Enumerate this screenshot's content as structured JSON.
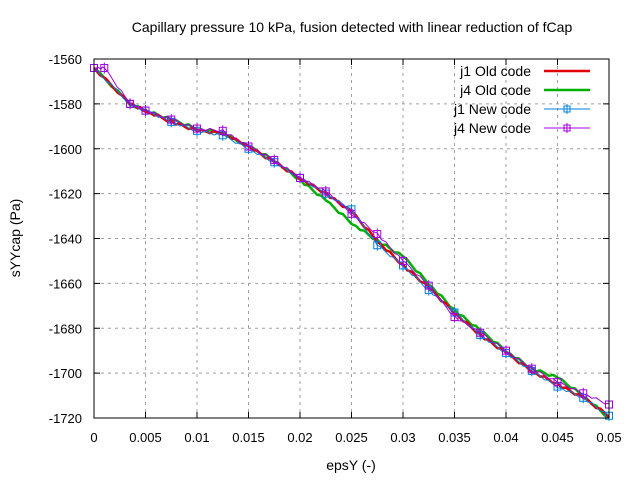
{
  "chart_data": {
    "type": "line",
    "title": "Capillary pressure 10 kPa, fusion detected with linear reduction of fCap",
    "xlabel": "epsY (-)",
    "ylabel": "sYYcap (Pa)",
    "xlim": [
      0,
      0.05
    ],
    "ylim": [
      -1720,
      -1560
    ],
    "x_ticks": [
      0,
      0.005,
      0.01,
      0.015,
      0.02,
      0.025,
      0.03,
      0.035,
      0.04,
      0.045,
      0.05
    ],
    "x_tick_labels": [
      "0",
      "0.005",
      "0.01",
      "0.015",
      "0.02",
      "0.025",
      "0.03",
      "0.035",
      "0.04",
      "0.045",
      "0.05"
    ],
    "y_ticks": [
      -1560,
      -1580,
      -1600,
      -1620,
      -1640,
      -1660,
      -1680,
      -1700,
      -1720
    ],
    "y_tick_labels": [
      "-1560",
      "-1580",
      "-1600",
      "-1620",
      "-1640",
      "-1660",
      "-1680",
      "-1700",
      "-1720"
    ],
    "grid": true,
    "legend_position": "top-right",
    "series": [
      {
        "name": "j1 Old code",
        "color": "#e00000",
        "style": "line",
        "x": [
          0,
          0.0035,
          0.005,
          0.0075,
          0.01,
          0.0125,
          0.015,
          0.0175,
          0.02,
          0.0225,
          0.025,
          0.0275,
          0.03,
          0.0325,
          0.035,
          0.0375,
          0.04,
          0.0425,
          0.045,
          0.0475,
          0.05
        ],
        "y": [
          -1564,
          -1580,
          -1583,
          -1588,
          -1592,
          -1593,
          -1599,
          -1606,
          -1613,
          -1620,
          -1628,
          -1641,
          -1652,
          -1662,
          -1673,
          -1683,
          -1691,
          -1699,
          -1705,
          -1711,
          -1719
        ]
      },
      {
        "name": "j4 Old code",
        "color": "#00b000",
        "style": "line",
        "x": [
          0,
          0.0035,
          0.005,
          0.0075,
          0.01,
          0.0125,
          0.015,
          0.0175,
          0.02,
          0.0225,
          0.025,
          0.0275,
          0.03,
          0.0325,
          0.035,
          0.0375,
          0.04,
          0.0425,
          0.045,
          0.0475,
          0.05
        ],
        "y": [
          -1564,
          -1580,
          -1583,
          -1587,
          -1591,
          -1593,
          -1599,
          -1605,
          -1614,
          -1623,
          -1633,
          -1641,
          -1648,
          -1660,
          -1672,
          -1681,
          -1690,
          -1698,
          -1702,
          -1710,
          -1720
        ]
      },
      {
        "name": "j1 New code",
        "color": "#0080e0",
        "style": "linespoints",
        "x": [
          0,
          0.0035,
          0.005,
          0.0075,
          0.01,
          0.0125,
          0.015,
          0.0175,
          0.02,
          0.0225,
          0.025,
          0.0275,
          0.03,
          0.0325,
          0.035,
          0.0375,
          0.04,
          0.0425,
          0.045,
          0.0475,
          0.05
        ],
        "y": [
          -1564,
          -1580,
          -1583,
          -1588,
          -1592,
          -1594,
          -1600,
          -1606,
          -1613,
          -1620,
          -1627,
          -1643,
          -1652,
          -1663,
          -1673,
          -1683,
          -1691,
          -1699,
          -1706,
          -1711,
          -1719
        ]
      },
      {
        "name": "j4 New code",
        "color": "#a000e0",
        "style": "linespoints",
        "x": [
          0,
          0.001,
          0.0035,
          0.005,
          0.0075,
          0.01,
          0.0125,
          0.015,
          0.0175,
          0.02,
          0.0225,
          0.025,
          0.0275,
          0.03,
          0.0325,
          0.035,
          0.0375,
          0.04,
          0.0425,
          0.045,
          0.0475,
          0.05
        ],
        "y": [
          -1564,
          -1564,
          -1580,
          -1583,
          -1587,
          -1591,
          -1592,
          -1599,
          -1605,
          -1613,
          -1619,
          -1629,
          -1638,
          -1650,
          -1661,
          -1675,
          -1682,
          -1690,
          -1698,
          -1704,
          -1709,
          -1714
        ]
      }
    ]
  }
}
